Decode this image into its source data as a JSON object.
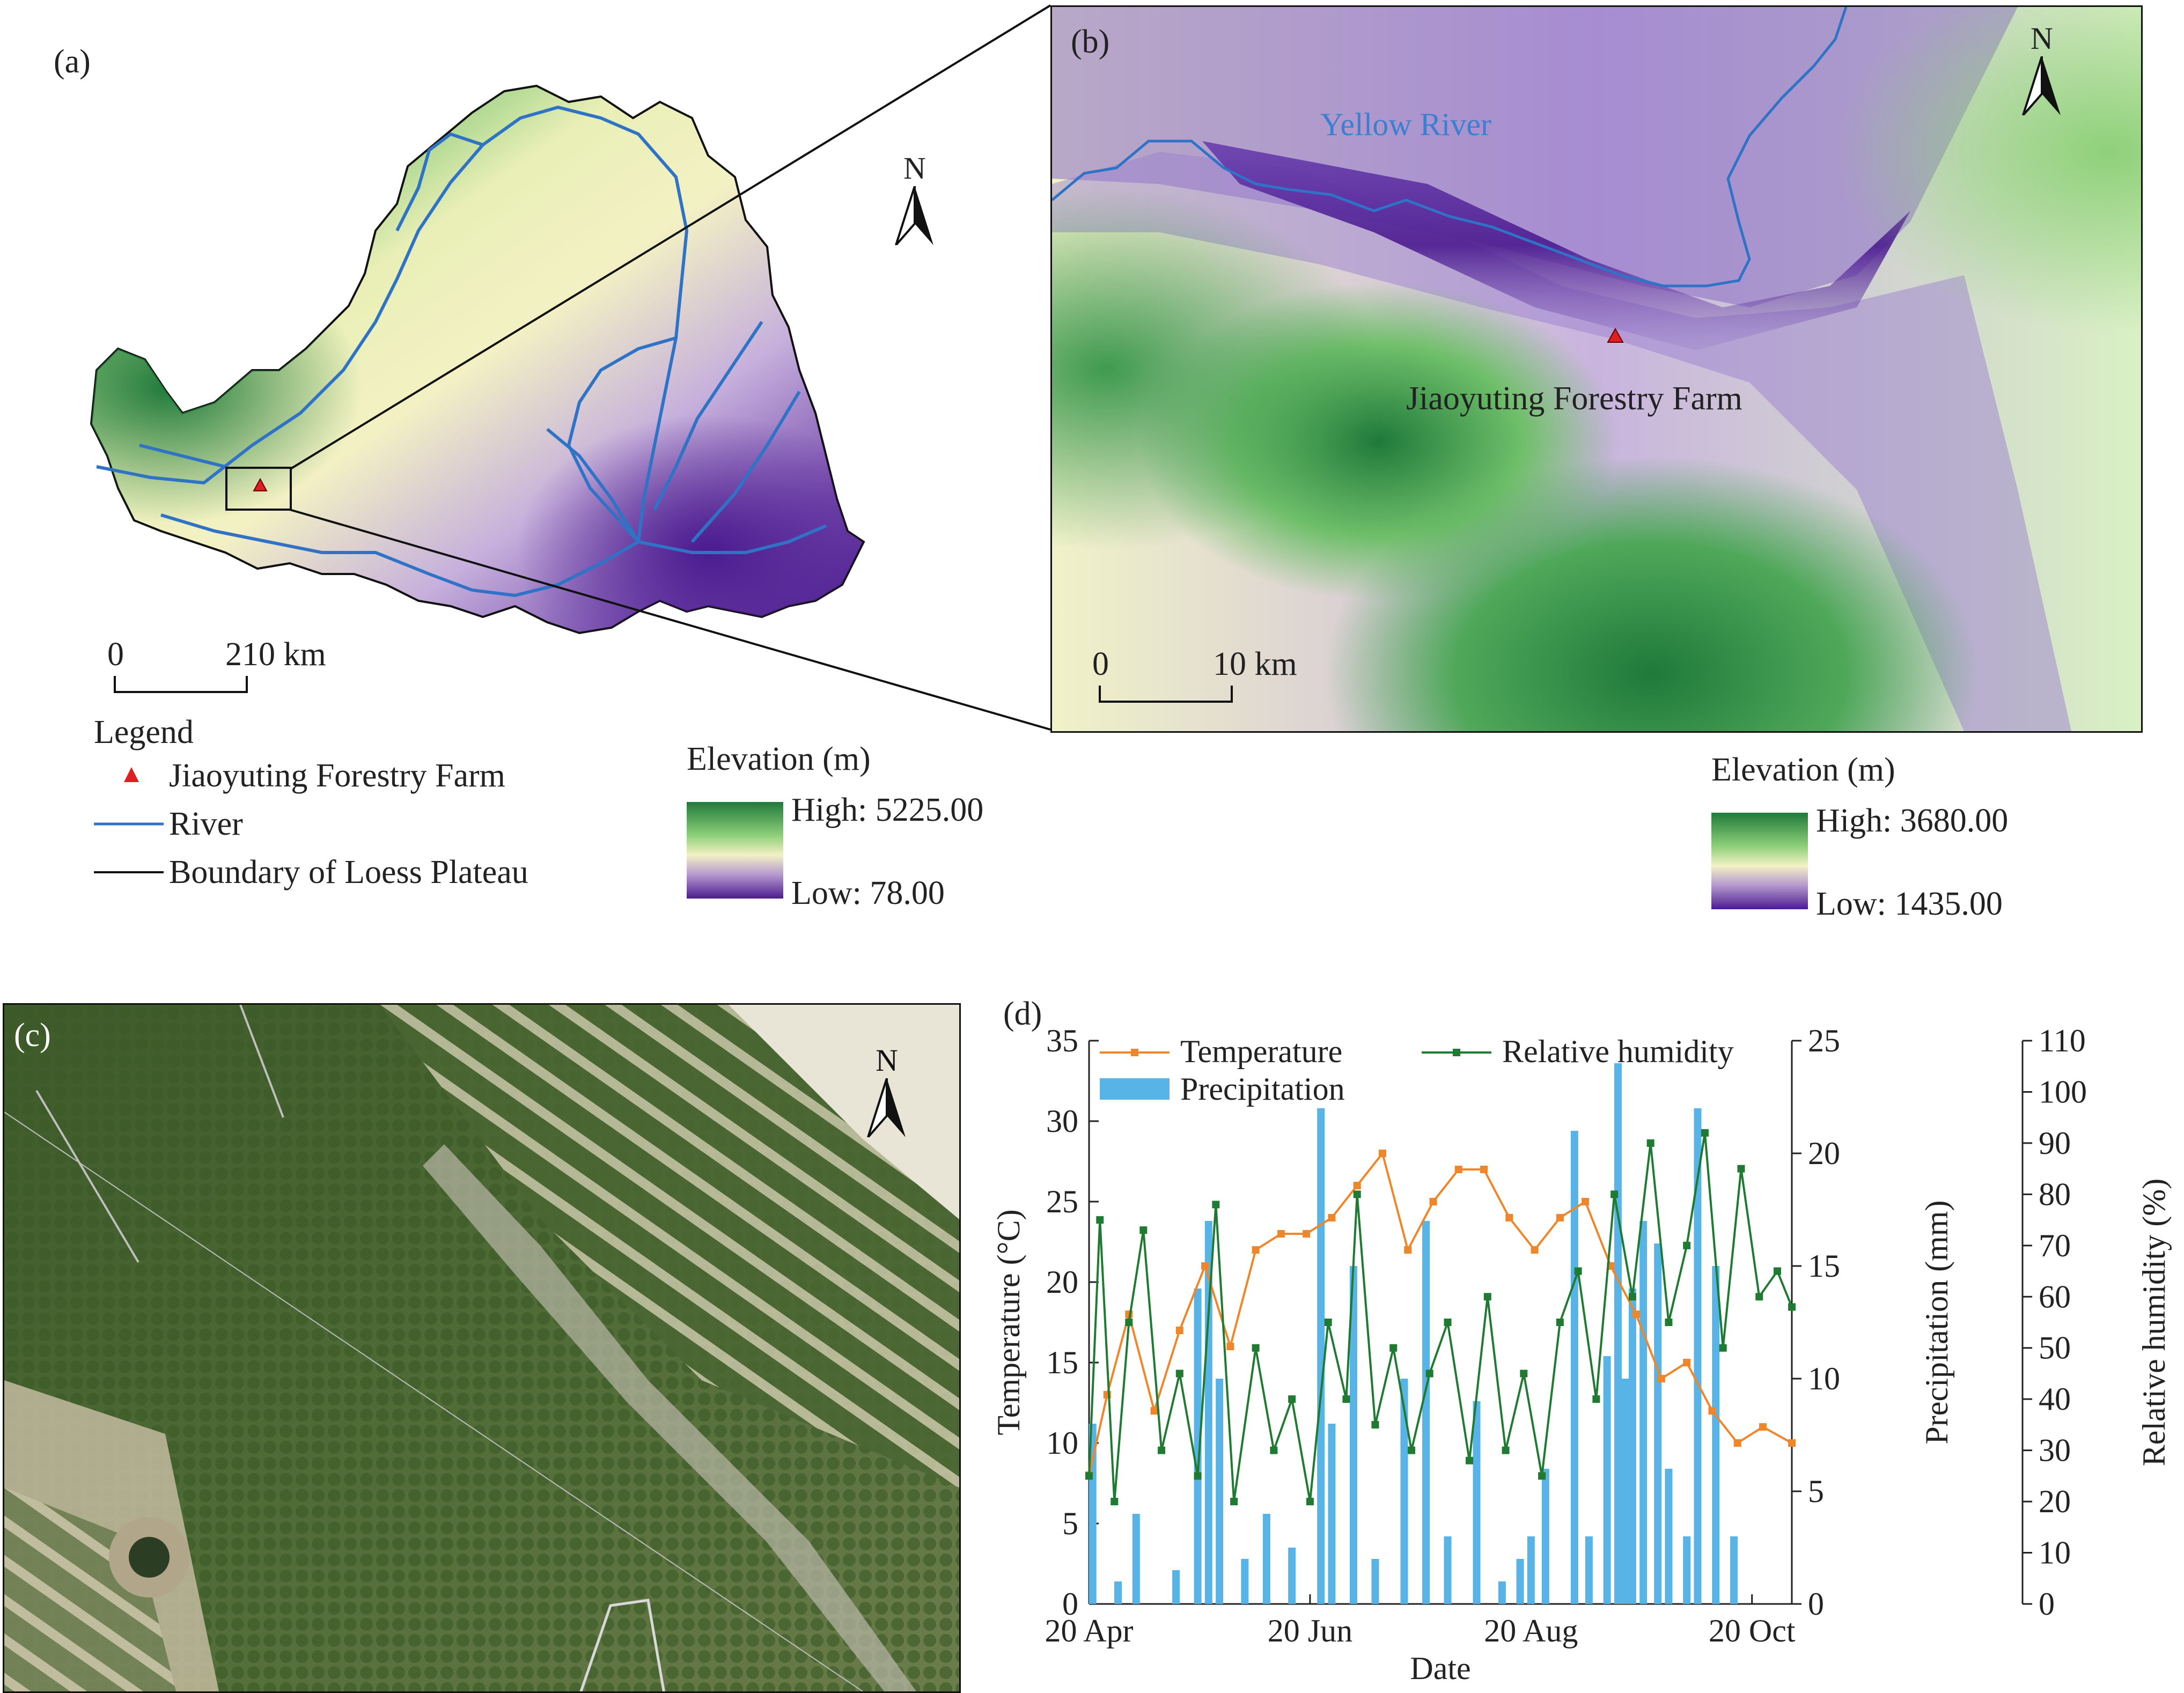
{
  "panel_a": {
    "label": "(a)",
    "north": "N",
    "scale": {
      "start": "0",
      "end": "210 km"
    },
    "legend_title": "Legend",
    "legend_items": [
      {
        "symbol": "triangle",
        "color": "#e02020",
        "label": "Jiaoyuting Forestry Farm"
      },
      {
        "symbol": "line",
        "color": "#2f73c7",
        "label": "River"
      },
      {
        "symbol": "line",
        "color": "#111111",
        "label": "Boundary of Loess Plateau"
      }
    ],
    "elevation": {
      "title": "Elevation (m)",
      "high": "High: 5225.00",
      "low": "Low: 78.00"
    }
  },
  "panel_b": {
    "label": "(b)",
    "north": "N",
    "river_label": "Yellow River",
    "site_label": "Jiaoyuting Forestry Farm",
    "scale": {
      "start": "0",
      "end": "10 km"
    },
    "elevation": {
      "title": "Elevation (m)",
      "high": "High: 3680.00",
      "low": "Low: 1435.00"
    }
  },
  "panel_c": {
    "label": "(c)",
    "north": "N"
  },
  "panel_d": {
    "label": "(d)"
  },
  "colors": {
    "elev_high": "#1f7a3a",
    "elev_mid_green": "#8fd07a",
    "elev_pale": "#f3f1c4",
    "elev_lilac": "#b79ad0",
    "elev_low": "#4b1b8f",
    "river": "#2f73c7",
    "temperature": "#f0862a",
    "humidity": "#1f7a32",
    "precip": "#58b3e6"
  },
  "chart_data": {
    "type": "line",
    "xlabel": "Date",
    "x_ticks": [
      "20 Apr",
      "20 Jun",
      "20 Aug",
      "20 Oct"
    ],
    "x_range": [
      "2020-04-20",
      "2020-10-31"
    ],
    "legend": [
      "Temperature",
      "Relative humidity",
      "Precipitation"
    ],
    "axes": {
      "temperature": {
        "label": "Temperature (°C)",
        "range": [
          0,
          35
        ],
        "ticks": [
          0,
          5,
          10,
          15,
          20,
          25,
          30,
          35
        ]
      },
      "precipitation": {
        "label": "Precipitation (mm)",
        "range": [
          0,
          25
        ],
        "ticks": [
          0,
          5,
          10,
          15,
          20,
          25
        ]
      },
      "humidity": {
        "label": "Relative humidity (%)",
        "range": [
          0,
          110
        ],
        "ticks": [
          0,
          10,
          20,
          30,
          40,
          50,
          60,
          70,
          80,
          90,
          100,
          110
        ]
      }
    },
    "series": [
      {
        "name": "Temperature",
        "axis": "temperature",
        "type": "line",
        "x": [
          "2020-04-20",
          "2020-04-25",
          "2020-05-01",
          "2020-05-08",
          "2020-05-15",
          "2020-05-22",
          "2020-05-29",
          "2020-06-05",
          "2020-06-12",
          "2020-06-19",
          "2020-06-26",
          "2020-07-03",
          "2020-07-10",
          "2020-07-17",
          "2020-07-24",
          "2020-07-31",
          "2020-08-07",
          "2020-08-14",
          "2020-08-21",
          "2020-08-28",
          "2020-09-04",
          "2020-09-11",
          "2020-09-18",
          "2020-09-25",
          "2020-10-02",
          "2020-10-09",
          "2020-10-16",
          "2020-10-23",
          "2020-10-31"
        ],
        "values": [
          8,
          13,
          18,
          12,
          17,
          21,
          16,
          22,
          23,
          23,
          24,
          26,
          28,
          22,
          25,
          27,
          27,
          24,
          22,
          24,
          25,
          21,
          18,
          14,
          15,
          12,
          10,
          11,
          10
        ]
      },
      {
        "name": "Relative humidity",
        "axis": "humidity",
        "type": "line",
        "x": [
          "2020-04-20",
          "2020-04-23",
          "2020-04-27",
          "2020-05-01",
          "2020-05-05",
          "2020-05-10",
          "2020-05-15",
          "2020-05-20",
          "2020-05-25",
          "2020-05-30",
          "2020-06-05",
          "2020-06-10",
          "2020-06-15",
          "2020-06-20",
          "2020-06-25",
          "2020-06-30",
          "2020-07-03",
          "2020-07-08",
          "2020-07-13",
          "2020-07-18",
          "2020-07-23",
          "2020-07-28",
          "2020-08-03",
          "2020-08-08",
          "2020-08-13",
          "2020-08-18",
          "2020-08-23",
          "2020-08-28",
          "2020-09-02",
          "2020-09-07",
          "2020-09-12",
          "2020-09-17",
          "2020-09-22",
          "2020-09-27",
          "2020-10-02",
          "2020-10-07",
          "2020-10-12",
          "2020-10-17",
          "2020-10-22",
          "2020-10-27",
          "2020-10-31"
        ],
        "values": [
          25,
          75,
          20,
          55,
          73,
          30,
          45,
          25,
          78,
          20,
          50,
          30,
          40,
          20,
          55,
          40,
          80,
          35,
          50,
          30,
          45,
          55,
          28,
          60,
          30,
          45,
          25,
          55,
          65,
          40,
          80,
          60,
          90,
          55,
          70,
          92,
          50,
          85,
          60,
          65,
          58
        ]
      },
      {
        "name": "Precipitation",
        "axis": "precipitation",
        "type": "bar",
        "x": [
          "2020-04-21",
          "2020-04-28",
          "2020-05-03",
          "2020-05-14",
          "2020-05-20",
          "2020-05-23",
          "2020-05-26",
          "2020-06-02",
          "2020-06-08",
          "2020-06-15",
          "2020-06-23",
          "2020-06-26",
          "2020-07-02",
          "2020-07-08",
          "2020-07-16",
          "2020-07-22",
          "2020-07-28",
          "2020-08-05",
          "2020-08-12",
          "2020-08-17",
          "2020-08-20",
          "2020-08-24",
          "2020-09-01",
          "2020-09-05",
          "2020-09-10",
          "2020-09-13",
          "2020-09-15",
          "2020-09-17",
          "2020-09-20",
          "2020-09-24",
          "2020-09-27",
          "2020-10-02",
          "2020-10-05",
          "2020-10-10",
          "2020-10-15"
        ],
        "values": [
          8,
          1,
          4,
          1.5,
          14,
          17,
          10,
          2,
          4,
          2.5,
          22,
          8,
          15,
          2,
          10,
          17,
          3,
          9,
          1,
          2,
          3,
          6,
          21,
          3,
          11,
          24,
          10,
          14,
          17,
          16,
          6,
          3,
          22,
          15,
          3
        ]
      }
    ]
  }
}
